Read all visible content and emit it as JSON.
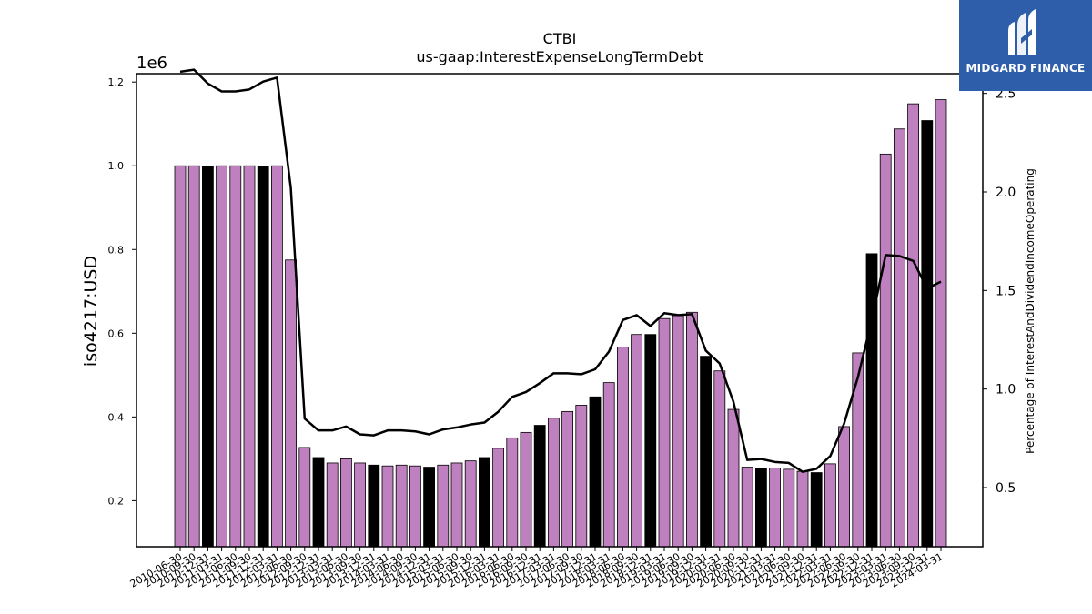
{
  "brand": {
    "name": "MIDGARD FINANCE",
    "bg_color": "#2e5daa"
  },
  "chart_data": {
    "type": "bar",
    "title": "CTBI",
    "subtitle": "us-gaap:InterestExpenseLongTermDebt",
    "ylabel": "iso4217:USD",
    "y2label": "Percentage of InterestAndDividendIncomeOperating",
    "y_multiplier": "1e6",
    "ylim": [
      0.09,
      1.22
    ],
    "y2lim": [
      0.2,
      2.6
    ],
    "yticks": [
      "0.2",
      "0.4",
      "0.6",
      "0.8",
      "1.0",
      "1.2"
    ],
    "y2ticks": [
      "0.5",
      "1.0",
      "1.5",
      "2.0",
      "2.5"
    ],
    "bar_colors": {
      "default": "#bf80bf",
      "highlight": "#000000"
    },
    "line_color": "#000000",
    "categories": [
      "2010-06-30",
      "2010-09-30",
      "2010-12-31",
      "2011-03-31",
      "2011-06-30",
      "2011-09-30",
      "2011-12-31",
      "2012-03-31",
      "2012-06-30",
      "2012-09-30",
      "2012-12-31",
      "2013-03-31",
      "2013-06-30",
      "2013-09-30",
      "2013-12-31",
      "2014-03-31",
      "2014-06-30",
      "2014-09-30",
      "2014-12-31",
      "2015-03-31",
      "2015-06-30",
      "2015-09-30",
      "2015-12-31",
      "2016-03-31",
      "2016-06-30",
      "2016-09-30",
      "2016-12-31",
      "2017-03-31",
      "2017-06-30",
      "2017-09-30",
      "2017-12-31",
      "2018-03-31",
      "2018-06-30",
      "2018-09-30",
      "2018-12-31",
      "2019-03-31",
      "2019-06-30",
      "2019-09-30",
      "2019-12-31",
      "2020-03-31",
      "2020-06-30",
      "2020-09-30",
      "2020-12-31",
      "2021-03-31",
      "2021-06-30",
      "2021-09-30",
      "2021-12-31",
      "2022-03-31",
      "2022-06-30",
      "2022-09-30",
      "2022-12-31",
      "2023-03-31",
      "2023-06-30",
      "2023-09-30",
      "2023-12-31",
      "2024-03-31"
    ],
    "values": [
      1.0,
      1.0,
      0.998,
      1.0,
      1.0,
      1.0,
      0.998,
      1.0,
      0.775,
      0.327,
      0.303,
      0.29,
      0.3,
      0.29,
      0.285,
      0.283,
      0.285,
      0.283,
      0.28,
      0.285,
      0.29,
      0.295,
      0.303,
      0.325,
      0.35,
      0.363,
      0.38,
      0.397,
      0.413,
      0.428,
      0.448,
      0.482,
      0.567,
      0.597,
      0.597,
      0.635,
      0.642,
      0.65,
      0.545,
      0.51,
      0.418,
      0.28,
      0.278,
      0.278,
      0.275,
      0.27,
      0.267,
      0.288,
      0.377,
      0.553,
      0.79,
      1.028,
      1.088,
      1.148,
      1.108,
      1.158
    ],
    "highlighted": [
      false,
      false,
      true,
      false,
      false,
      false,
      true,
      false,
      false,
      false,
      true,
      false,
      false,
      false,
      true,
      false,
      false,
      false,
      true,
      false,
      false,
      false,
      true,
      false,
      false,
      false,
      true,
      false,
      false,
      false,
      true,
      false,
      false,
      false,
      true,
      false,
      false,
      false,
      true,
      false,
      false,
      false,
      true,
      false,
      false,
      false,
      true,
      false,
      false,
      false,
      true,
      false,
      false,
      false,
      true,
      false
    ],
    "line_values": [
      2.61,
      2.62,
      2.55,
      2.51,
      2.51,
      2.52,
      2.56,
      2.58,
      2.02,
      0.85,
      0.79,
      0.79,
      0.81,
      0.77,
      0.765,
      0.79,
      0.79,
      0.785,
      0.77,
      0.795,
      0.805,
      0.82,
      0.83,
      0.885,
      0.96,
      0.985,
      1.03,
      1.08,
      1.08,
      1.075,
      1.1,
      1.19,
      1.35,
      1.375,
      1.32,
      1.385,
      1.375,
      1.38,
      1.195,
      1.13,
      0.935,
      0.64,
      0.645,
      0.63,
      0.625,
      0.58,
      0.595,
      0.66,
      0.825,
      1.06,
      1.35,
      1.68,
      1.675,
      1.65,
      1.51,
      1.545
    ]
  }
}
